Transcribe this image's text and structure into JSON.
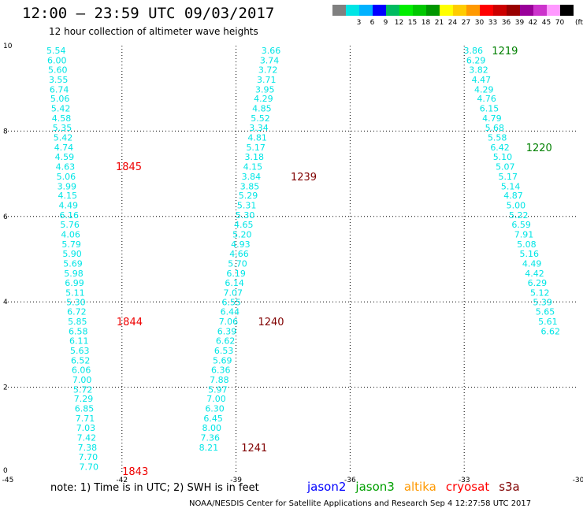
{
  "header": {
    "title": "12:00 – 23:59 UTC 09/03/2017",
    "subtitle": "12 hour collection of altimeter wave heights"
  },
  "legend": {
    "unit": "(ft)",
    "bins": [
      {
        "label": "",
        "color": "#808080"
      },
      {
        "label": "3",
        "color": "#00e5e5"
      },
      {
        "label": "6",
        "color": "#00b2ff"
      },
      {
        "label": "9",
        "color": "#0000ff"
      },
      {
        "label": "12",
        "color": "#00bb60"
      },
      {
        "label": "15",
        "color": "#00ee00"
      },
      {
        "label": "18",
        "color": "#00c800"
      },
      {
        "label": "21",
        "color": "#009600"
      },
      {
        "label": "24",
        "color": "#ffff00"
      },
      {
        "label": "27",
        "color": "#ffcc00"
      },
      {
        "label": "30",
        "color": "#ff9900"
      },
      {
        "label": "33",
        "color": "#ff0000"
      },
      {
        "label": "36",
        "color": "#cc0000"
      },
      {
        "label": "39",
        "color": "#990000"
      },
      {
        "label": "42",
        "color": "#990099"
      },
      {
        "label": "45",
        "color": "#cc33cc"
      },
      {
        "label": "70",
        "color": "#ff99ff"
      },
      {
        "label": "",
        "color": "#000000"
      }
    ]
  },
  "footer": {
    "note": "note:  1) Time is in UTC;  2) SWH is in feet",
    "satellites": [
      {
        "name": "jason2",
        "color": "#0000ff"
      },
      {
        "name": "jason3",
        "color": "#00a000"
      },
      {
        "name": "altika",
        "color": "#ff9900"
      },
      {
        "name": "cryosat",
        "color": "#ff0000"
      },
      {
        "name": "s3a",
        "color": "#800000"
      }
    ],
    "credit": "NOAA/NESDIS Center for Satellite Applications and Research    Sep  4 12:27:58 UTC 2017"
  },
  "chart_data": {
    "type": "scatter",
    "xlim": [
      -45,
      -30
    ],
    "ylim": [
      0,
      10
    ],
    "xticks": [
      "-45",
      "-42",
      "-39",
      "-36",
      "-33",
      "-30"
    ],
    "yticks": [
      "0",
      "2",
      "4",
      "6",
      "8",
      "10"
    ],
    "grid": true,
    "value_color": "#00e5e5",
    "tracks": [
      {
        "points": [
          {
            "x": -43.73,
            "y": 9.89,
            "v": "5.54"
          },
          {
            "x": -43.71,
            "y": 9.66,
            "v": "6.00"
          },
          {
            "x": -43.69,
            "y": 9.44,
            "v": "5.60"
          },
          {
            "x": -43.67,
            "y": 9.21,
            "v": "3.55"
          },
          {
            "x": -43.65,
            "y": 8.98,
            "v": "6.74"
          },
          {
            "x": -43.63,
            "y": 8.76,
            "v": "5.06"
          },
          {
            "x": -43.61,
            "y": 8.53,
            "v": "5.42"
          },
          {
            "x": -43.59,
            "y": 8.3,
            "v": "4.58"
          },
          {
            "x": -43.57,
            "y": 8.08,
            "v": "5.35"
          },
          {
            "x": -43.55,
            "y": 7.85,
            "v": "5.42"
          },
          {
            "x": -43.53,
            "y": 7.62,
            "v": "4.74"
          },
          {
            "x": -43.51,
            "y": 7.4,
            "v": "4.59"
          },
          {
            "x": -43.49,
            "y": 7.17,
            "v": "4.63"
          },
          {
            "x": -43.47,
            "y": 6.94,
            "v": "5.06"
          },
          {
            "x": -43.45,
            "y": 6.71,
            "v": "3.99"
          },
          {
            "x": -43.43,
            "y": 6.49,
            "v": "4.15"
          },
          {
            "x": -43.41,
            "y": 6.26,
            "v": "4.49"
          },
          {
            "x": -43.39,
            "y": 6.03,
            "v": "6.16"
          },
          {
            "x": -43.37,
            "y": 5.81,
            "v": "5.76"
          },
          {
            "x": -43.35,
            "y": 5.58,
            "v": "4.06"
          },
          {
            "x": -43.33,
            "y": 5.35,
            "v": "5.79"
          },
          {
            "x": -43.31,
            "y": 5.13,
            "v": "5.90"
          },
          {
            "x": -43.29,
            "y": 4.9,
            "v": "5.69"
          },
          {
            "x": -43.27,
            "y": 4.67,
            "v": "5.98"
          },
          {
            "x": -43.25,
            "y": 4.45,
            "v": "6.99"
          },
          {
            "x": -43.23,
            "y": 4.22,
            "v": "5.11"
          },
          {
            "x": -43.21,
            "y": 3.99,
            "v": "5.30"
          },
          {
            "x": -43.19,
            "y": 3.77,
            "v": "6.72"
          },
          {
            "x": -43.17,
            "y": 3.54,
            "v": "5.85"
          },
          {
            "x": -43.15,
            "y": 3.31,
            "v": "6.58"
          },
          {
            "x": -43.13,
            "y": 3.09,
            "v": "6.11"
          },
          {
            "x": -43.11,
            "y": 2.86,
            "v": "5.63"
          },
          {
            "x": -43.09,
            "y": 2.63,
            "v": "6.52"
          },
          {
            "x": -43.07,
            "y": 2.41,
            "v": "6.06"
          },
          {
            "x": -43.05,
            "y": 2.18,
            "v": "7.00"
          },
          {
            "x": -43.03,
            "y": 1.95,
            "v": "5.72"
          },
          {
            "x": -43.01,
            "y": 1.73,
            "v": "7.29"
          },
          {
            "x": -42.99,
            "y": 1.5,
            "v": "6.85"
          },
          {
            "x": -42.97,
            "y": 1.27,
            "v": "7.71"
          },
          {
            "x": -42.95,
            "y": 1.05,
            "v": "7.03"
          },
          {
            "x": -42.93,
            "y": 0.82,
            "v": "7.42"
          },
          {
            "x": -42.91,
            "y": 0.59,
            "v": "7.38"
          },
          {
            "x": -42.89,
            "y": 0.37,
            "v": "7.70"
          },
          {
            "x": -42.87,
            "y": 0.14,
            "v": "7.70"
          }
        ],
        "times": [
          {
            "label": "1845",
            "x": -41.82,
            "y": 7.18,
            "color": "#ee0000"
          },
          {
            "label": "1844",
            "x": -41.8,
            "y": 3.54,
            "color": "#ee0000"
          },
          {
            "label": "1843",
            "x": -41.65,
            "y": 0.04,
            "color": "#ee0000"
          }
        ]
      },
      {
        "points": [
          {
            "x": -38.08,
            "y": 9.89,
            "v": "3.66"
          },
          {
            "x": -38.12,
            "y": 9.66,
            "v": "3.74"
          },
          {
            "x": -38.16,
            "y": 9.44,
            "v": "3.72"
          },
          {
            "x": -38.2,
            "y": 9.21,
            "v": "3.71"
          },
          {
            "x": -38.24,
            "y": 8.98,
            "v": "3.95"
          },
          {
            "x": -38.28,
            "y": 8.76,
            "v": "4.29"
          },
          {
            "x": -38.32,
            "y": 8.53,
            "v": "4.85"
          },
          {
            "x": -38.36,
            "y": 8.3,
            "v": "5.52"
          },
          {
            "x": -38.4,
            "y": 8.08,
            "v": "3.34"
          },
          {
            "x": -38.44,
            "y": 7.85,
            "v": "4.81"
          },
          {
            "x": -38.48,
            "y": 7.62,
            "v": "5.17"
          },
          {
            "x": -38.52,
            "y": 7.4,
            "v": "3.18"
          },
          {
            "x": -38.56,
            "y": 7.17,
            "v": "4.15"
          },
          {
            "x": -38.6,
            "y": 6.94,
            "v": "3.84"
          },
          {
            "x": -38.64,
            "y": 6.71,
            "v": "3.85"
          },
          {
            "x": -38.68,
            "y": 6.49,
            "v": "5.29"
          },
          {
            "x": -38.72,
            "y": 6.26,
            "v": "5.31"
          },
          {
            "x": -38.76,
            "y": 6.03,
            "v": "5.30"
          },
          {
            "x": -38.8,
            "y": 5.81,
            "v": "4.65"
          },
          {
            "x": -38.84,
            "y": 5.58,
            "v": "5.20"
          },
          {
            "x": -38.88,
            "y": 5.35,
            "v": "4.93"
          },
          {
            "x": -38.92,
            "y": 5.13,
            "v": "4.66"
          },
          {
            "x": -38.96,
            "y": 4.9,
            "v": "5.70"
          },
          {
            "x": -39.0,
            "y": 4.67,
            "v": "6.19"
          },
          {
            "x": -39.04,
            "y": 4.45,
            "v": "6.14"
          },
          {
            "x": -39.08,
            "y": 4.22,
            "v": "7.07"
          },
          {
            "x": -39.12,
            "y": 3.99,
            "v": "6.55"
          },
          {
            "x": -39.16,
            "y": 3.77,
            "v": "6.44"
          },
          {
            "x": -39.2,
            "y": 3.54,
            "v": "7.06"
          },
          {
            "x": -39.24,
            "y": 3.31,
            "v": "6.39"
          },
          {
            "x": -39.28,
            "y": 3.09,
            "v": "6.62"
          },
          {
            "x": -39.32,
            "y": 2.86,
            "v": "6.53"
          },
          {
            "x": -39.36,
            "y": 2.63,
            "v": "5.69"
          },
          {
            "x": -39.4,
            "y": 2.41,
            "v": "6.36"
          },
          {
            "x": -39.44,
            "y": 2.18,
            "v": "7.88"
          },
          {
            "x": -39.48,
            "y": 1.95,
            "v": "5.97"
          },
          {
            "x": -39.52,
            "y": 1.73,
            "v": "7.00"
          },
          {
            "x": -39.56,
            "y": 1.5,
            "v": "6.30"
          },
          {
            "x": -39.6,
            "y": 1.27,
            "v": "6.45"
          },
          {
            "x": -39.64,
            "y": 1.05,
            "v": "8.00"
          },
          {
            "x": -39.68,
            "y": 0.82,
            "v": "7.36"
          },
          {
            "x": -39.72,
            "y": 0.59,
            "v": "8.21"
          }
        ],
        "times": [
          {
            "label": "1239",
            "x": -37.22,
            "y": 6.94,
            "color": "#800000"
          },
          {
            "label": "1240",
            "x": -38.08,
            "y": 3.54,
            "color": "#800000"
          },
          {
            "label": "1241",
            "x": -38.52,
            "y": 0.59,
            "color": "#800000"
          }
        ]
      },
      {
        "points": [
          {
            "x": -32.76,
            "y": 9.89,
            "v": "3.86"
          },
          {
            "x": -32.69,
            "y": 9.66,
            "v": "6.29"
          },
          {
            "x": -32.62,
            "y": 9.44,
            "v": "3.82"
          },
          {
            "x": -32.55,
            "y": 9.21,
            "v": "4.47"
          },
          {
            "x": -32.48,
            "y": 8.98,
            "v": "4.29"
          },
          {
            "x": -32.41,
            "y": 8.76,
            "v": "4.76"
          },
          {
            "x": -32.34,
            "y": 8.53,
            "v": "6.15"
          },
          {
            "x": -32.27,
            "y": 8.3,
            "v": "4.79"
          },
          {
            "x": -32.2,
            "y": 8.08,
            "v": "5.68"
          },
          {
            "x": -32.13,
            "y": 7.85,
            "v": "5.58"
          },
          {
            "x": -32.06,
            "y": 7.62,
            "v": "6.42"
          },
          {
            "x": -31.99,
            "y": 7.4,
            "v": "5.10"
          },
          {
            "x": -31.92,
            "y": 7.17,
            "v": "5.07"
          },
          {
            "x": -31.85,
            "y": 6.94,
            "v": "5.17"
          },
          {
            "x": -31.78,
            "y": 6.71,
            "v": "5.14"
          },
          {
            "x": -31.71,
            "y": 6.49,
            "v": "4.87"
          },
          {
            "x": -31.64,
            "y": 6.26,
            "v": "5.00"
          },
          {
            "x": -31.57,
            "y": 6.03,
            "v": "5.22"
          },
          {
            "x": -31.5,
            "y": 5.81,
            "v": "6.59"
          },
          {
            "x": -31.43,
            "y": 5.58,
            "v": "7.91"
          },
          {
            "x": -31.36,
            "y": 5.35,
            "v": "5.08"
          },
          {
            "x": -31.29,
            "y": 5.13,
            "v": "5.16"
          },
          {
            "x": -31.22,
            "y": 4.9,
            "v": "4.49"
          },
          {
            "x": -31.15,
            "y": 4.67,
            "v": "4.42"
          },
          {
            "x": -31.08,
            "y": 4.45,
            "v": "6.29"
          },
          {
            "x": -31.01,
            "y": 4.22,
            "v": "5.12"
          },
          {
            "x": -30.94,
            "y": 3.99,
            "v": "5.39"
          },
          {
            "x": -30.87,
            "y": 3.77,
            "v": "5.65"
          },
          {
            "x": -30.8,
            "y": 3.54,
            "v": "5.61"
          },
          {
            "x": -30.73,
            "y": 3.31,
            "v": "6.62"
          }
        ],
        "times": [
          {
            "label": "1219",
            "x": -31.93,
            "y": 9.89,
            "color": "#008000"
          },
          {
            "label": "1220",
            "x": -31.03,
            "y": 7.62,
            "color": "#008000"
          }
        ]
      }
    ]
  }
}
